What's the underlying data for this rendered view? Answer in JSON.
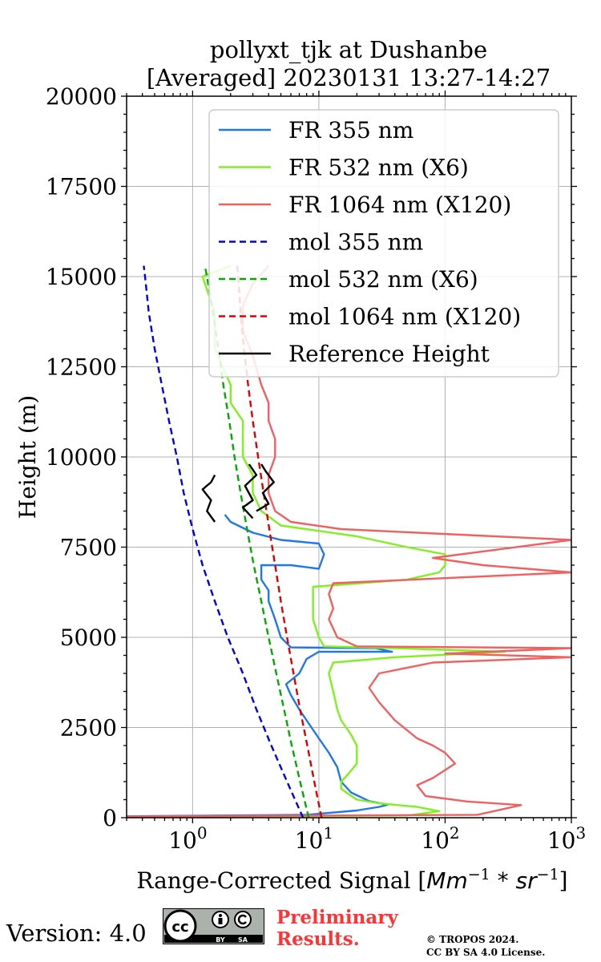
{
  "chart_data": {
    "type": "line",
    "title": [
      "pollyxt_tjk at Dushanbe",
      "[Averaged] 20230131 13:27-14:27"
    ],
    "xlabel": "Range-Corrected Signal [",
    "xlabel_math": "Mm",
    "xlabel_sup1": "−1",
    "xlabel_mid": " * sr",
    "xlabel_sup2": "−1",
    "xlabel_end": "]",
    "ylabel": "Height (m)",
    "xscale": "log",
    "xlim": [
      0.3,
      1000
    ],
    "ylim": [
      0,
      20000
    ],
    "yticks": [
      0,
      2500,
      5000,
      7500,
      10000,
      12500,
      15000,
      17500,
      20000
    ],
    "xticks": [
      {
        "base": "10",
        "exp": "0",
        "value": 1
      },
      {
        "base": "10",
        "exp": "1",
        "value": 10
      },
      {
        "base": "10",
        "exp": "2",
        "value": 100
      },
      {
        "base": "10",
        "exp": "3",
        "value": 1000
      }
    ],
    "grid": true,
    "legend_position": "top-right",
    "series": [
      {
        "name": "FR 355 nm",
        "color": "#1f77e8",
        "style": "solid",
        "points": [
          [
            0.3,
            40
          ],
          [
            8,
            80
          ],
          [
            20,
            200
          ],
          [
            30,
            300
          ],
          [
            35,
            360
          ],
          [
            25,
            460
          ],
          [
            18,
            700
          ],
          [
            15,
            1000
          ],
          [
            14,
            1400
          ],
          [
            12,
            1800
          ],
          [
            10,
            2200
          ],
          [
            8,
            2700
          ],
          [
            7,
            3000
          ],
          [
            6,
            3400
          ],
          [
            5.5,
            3700
          ],
          [
            7,
            4000
          ],
          [
            8,
            4400
          ],
          [
            10,
            4600
          ],
          [
            38,
            4600
          ],
          [
            28,
            4700
          ],
          [
            6,
            4720
          ],
          [
            5,
            5000
          ],
          [
            4.5,
            5500
          ],
          [
            4,
            6000
          ],
          [
            4,
            6300
          ],
          [
            3.5,
            6600
          ],
          [
            3.5,
            7000
          ],
          [
            6,
            7000
          ],
          [
            10,
            6900
          ],
          [
            11,
            7300
          ],
          [
            10,
            7600
          ],
          [
            5,
            7700
          ],
          [
            3,
            7900
          ],
          [
            2,
            8200
          ],
          [
            1.8,
            8400
          ]
        ]
      },
      {
        "name": "FR 532 nm (X6)",
        "color": "#80f020",
        "style": "solid",
        "points": [
          [
            0.6,
            30
          ],
          [
            50,
            60
          ],
          [
            90,
            180
          ],
          [
            60,
            300
          ],
          [
            30,
            400
          ],
          [
            20,
            500
          ],
          [
            15,
            800
          ],
          [
            15,
            1000
          ],
          [
            17,
            1200
          ],
          [
            20,
            1500
          ],
          [
            20,
            2000
          ],
          [
            18,
            2300
          ],
          [
            15,
            2700
          ],
          [
            14,
            3000
          ],
          [
            13,
            3500
          ],
          [
            12,
            4000
          ],
          [
            13,
            4300
          ],
          [
            40,
            4450
          ],
          [
            300,
            4600
          ],
          [
            40,
            4700
          ],
          [
            11,
            4750
          ],
          [
            10,
            5000
          ],
          [
            9,
            5500
          ],
          [
            9,
            6000
          ],
          [
            9,
            6400
          ],
          [
            50,
            6600
          ],
          [
            90,
            6800
          ],
          [
            100,
            7000
          ],
          [
            100,
            7300
          ],
          [
            50,
            7500
          ],
          [
            20,
            7800
          ],
          [
            5,
            8100
          ],
          [
            3.5,
            8500
          ],
          [
            3,
            9000
          ],
          [
            3,
            9500
          ],
          [
            2.5,
            10000
          ],
          [
            2.5,
            10500
          ],
          [
            2.5,
            11000
          ],
          [
            2,
            11500
          ],
          [
            2,
            12000
          ],
          [
            1.5,
            13000
          ],
          [
            1.5,
            14000
          ],
          [
            1.2,
            15000
          ],
          [
            2,
            15300
          ]
        ]
      },
      {
        "name": "FR 1064 nm (X120)",
        "color": "#f06060",
        "style": "solid",
        "points": [
          [
            0.3,
            30
          ],
          [
            180,
            80
          ],
          [
            400,
            350
          ],
          [
            150,
            450
          ],
          [
            70,
            600
          ],
          [
            60,
            900
          ],
          [
            80,
            1100
          ],
          [
            120,
            1500
          ],
          [
            100,
            1800
          ],
          [
            80,
            2000
          ],
          [
            60,
            2200
          ],
          [
            40,
            2700
          ],
          [
            30,
            3200
          ],
          [
            25,
            3600
          ],
          [
            30,
            4000
          ],
          [
            80,
            4300
          ],
          [
            1000,
            4450
          ],
          [
            100,
            4550
          ],
          [
            1000,
            4700
          ],
          [
            20,
            4750
          ],
          [
            14,
            5000
          ],
          [
            12,
            5500
          ],
          [
            13,
            5800
          ],
          [
            12,
            6200
          ],
          [
            13,
            6500
          ],
          [
            1000,
            6800
          ],
          [
            200,
            7000
          ],
          [
            80,
            7200
          ],
          [
            1000,
            7700
          ],
          [
            15,
            8000
          ],
          [
            6,
            8200
          ],
          [
            4.5,
            8500
          ],
          [
            4,
            9000
          ],
          [
            4,
            9500
          ],
          [
            4.5,
            10000
          ],
          [
            4.5,
            10500
          ],
          [
            4,
            11000
          ],
          [
            4,
            11500
          ],
          [
            3.5,
            12000
          ],
          [
            3,
            12800
          ],
          [
            2.5,
            13500
          ],
          [
            2.5,
            14200
          ],
          [
            3,
            14800
          ],
          [
            4,
            15300
          ]
        ]
      },
      {
        "name": "mol 355 nm",
        "color": "#0000dd",
        "style": "dashed",
        "points": [
          [
            7.5,
            0
          ],
          [
            5.6,
            1000
          ],
          [
            4.2,
            2000
          ],
          [
            3.2,
            3000
          ],
          [
            2.5,
            4000
          ],
          [
            1.9,
            5000
          ],
          [
            1.5,
            6000
          ],
          [
            1.2,
            7000
          ],
          [
            1.0,
            8000
          ],
          [
            0.85,
            9000
          ],
          [
            0.75,
            10000
          ],
          [
            0.65,
            11000
          ],
          [
            0.57,
            12000
          ],
          [
            0.5,
            13000
          ],
          [
            0.45,
            14000
          ],
          [
            0.42,
            15000
          ],
          [
            0.41,
            15300
          ]
        ]
      },
      {
        "name": "mol 532 nm (X6)",
        "color": "#00aa00",
        "style": "dashed",
        "points": [
          [
            8.3,
            0
          ],
          [
            7.1,
            1000
          ],
          [
            6.1,
            2000
          ],
          [
            5.3,
            3000
          ],
          [
            4.6,
            4000
          ],
          [
            4.0,
            5000
          ],
          [
            3.5,
            6000
          ],
          [
            3.05,
            7000
          ],
          [
            2.7,
            8000
          ],
          [
            2.4,
            9000
          ],
          [
            2.15,
            10000
          ],
          [
            1.95,
            11000
          ],
          [
            1.75,
            12000
          ],
          [
            1.6,
            13000
          ],
          [
            1.45,
            14000
          ],
          [
            1.3,
            15000
          ],
          [
            1.25,
            15300
          ]
        ]
      },
      {
        "name": "mol 1064 nm (X120)",
        "color": "#dd0000",
        "style": "dashed",
        "points": [
          [
            10.5,
            0
          ],
          [
            9.2,
            1000
          ],
          [
            8.1,
            2000
          ],
          [
            7.1,
            3000
          ],
          [
            6.3,
            4000
          ],
          [
            5.6,
            5000
          ],
          [
            5.0,
            6000
          ],
          [
            4.5,
            7000
          ],
          [
            4.05,
            8000
          ],
          [
            3.65,
            9000
          ],
          [
            3.3,
            10000
          ],
          [
            3.0,
            11000
          ],
          [
            2.75,
            12000
          ],
          [
            2.55,
            13000
          ],
          [
            2.4,
            14000
          ],
          [
            2.3,
            15000
          ],
          [
            2.25,
            15300
          ]
        ]
      },
      {
        "name": "Reference Height",
        "color": "#000000",
        "style": "solid",
        "segments": [
          [
            [
              1.5,
              8200
            ],
            [
              1.3,
              8500
            ],
            [
              1.4,
              8800
            ],
            [
              1.2,
              9100
            ],
            [
              1.4,
              9300
            ],
            [
              1.5,
              9500
            ]
          ],
          [
            [
              3,
              8300
            ],
            [
              2.5,
              8600
            ],
            [
              3,
              8800
            ],
            [
              2.6,
              9200
            ],
            [
              3.2,
              9500
            ],
            [
              2.8,
              9800
            ]
          ],
          [
            [
              3.2,
              8500
            ],
            [
              4,
              8700
            ],
            [
              3.6,
              9000
            ],
            [
              4.4,
              9300
            ],
            [
              3.8,
              9600
            ],
            [
              3.5,
              9800
            ]
          ]
        ]
      }
    ]
  },
  "footer": {
    "version": "Version: 4.0",
    "license_badge": [
      "BY",
      "SA"
    ],
    "preliminary": [
      "Preliminary",
      "Results."
    ],
    "copyright": [
      "© TROPOS 2024.",
      "CC BY SA 4.0 License."
    ]
  }
}
